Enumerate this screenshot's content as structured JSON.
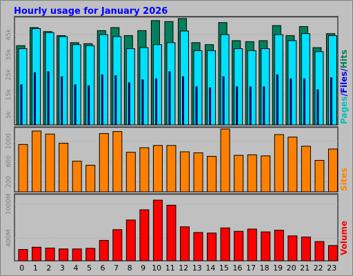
{
  "title": "Hourly usage for January 2026",
  "colors": {
    "hits": "#00805c",
    "files": "#00e0ff",
    "pages": "#00ffff",
    "pages_inner": "#0000ff",
    "sites": "#ff8000",
    "volume": "#ff0000",
    "title": "#0000ff",
    "label_hits": "#00805c",
    "label_files": "#0000ff",
    "label_pages": "#00c0c0",
    "label_sites": "#ff8000",
    "label_volume": "#ff0000"
  },
  "chart_data": [
    {
      "type": "bar",
      "name": "hits-files-pages",
      "categories": [
        "0",
        "1",
        "2",
        "3",
        "4",
        "5",
        "6",
        "7",
        "8",
        "9",
        "10",
        "11",
        "12",
        "13",
        "14",
        "15",
        "16",
        "17",
        "18",
        "19",
        "20",
        "21",
        "22",
        "23"
      ],
      "series": [
        {
          "name": "Hits",
          "values": [
            39500,
            48500,
            46500,
            44500,
            41000,
            40500,
            47000,
            48500,
            44500,
            47000,
            52000,
            51500,
            53000,
            41000,
            40000,
            51000,
            42000,
            41500,
            42000,
            49500,
            44500,
            49000,
            38500,
            45500
          ]
        },
        {
          "name": "Files",
          "values": [
            38000,
            48000,
            46000,
            44000,
            40000,
            39500,
            45000,
            44000,
            38000,
            38500,
            40000,
            41000,
            46800,
            37000,
            37000,
            45000,
            38000,
            37000,
            38000,
            45000,
            42000,
            45500,
            36500,
            44500
          ]
        },
        {
          "name": "Pages",
          "values": [
            20000,
            26000,
            26500,
            24000,
            20000,
            19500,
            25000,
            24500,
            21000,
            22500,
            23000,
            26500,
            24000,
            19000,
            18500,
            24000,
            19000,
            19000,
            19000,
            25000,
            23000,
            23000,
            17500,
            23500
          ]
        }
      ],
      "axis_label": {
        "pages": "Pages",
        "sep1": "/",
        "files": "Files",
        "sep2": "/",
        "hits": "Hits"
      },
      "ticks": [
        "5k",
        "15k",
        "25k",
        "35k",
        "45k"
      ],
      "tick_values": [
        5000,
        15000,
        25000,
        35000,
        45000
      ],
      "ylim": [
        0,
        54000
      ]
    },
    {
      "type": "bar",
      "name": "sites",
      "categories": [
        "0",
        "1",
        "2",
        "3",
        "4",
        "5",
        "6",
        "7",
        "8",
        "9",
        "10",
        "11",
        "12",
        "13",
        "14",
        "15",
        "16",
        "17",
        "18",
        "19",
        "20",
        "21",
        "22",
        "23"
      ],
      "series": [
        {
          "name": "Sites",
          "values": [
            935,
            1200,
            1140,
            960,
            605,
            525,
            1150,
            1190,
            780,
            870,
            915,
            915,
            790,
            770,
            700,
            1240,
            720,
            730,
            710,
            1130,
            1080,
            900,
            620,
            845
          ]
        }
      ],
      "axis_label": "Sites",
      "ticks": [
        "200",
        "600",
        "1000"
      ],
      "tick_values": [
        200,
        600,
        1000
      ],
      "ylim": [
        0,
        1280
      ]
    },
    {
      "type": "bar",
      "name": "volume",
      "categories": [
        "0",
        "1",
        "2",
        "3",
        "4",
        "5",
        "6",
        "7",
        "8",
        "9",
        "10",
        "11",
        "12",
        "13",
        "14",
        "15",
        "16",
        "17",
        "18",
        "19",
        "20",
        "21",
        "22",
        "23"
      ],
      "series": [
        {
          "name": "Volume",
          "values": [
            200,
            240,
            225,
            210,
            210,
            220,
            360,
            550,
            720,
            900,
            1070,
            980,
            600,
            500,
            490,
            580,
            520,
            560,
            510,
            540,
            440,
            420,
            340,
            270
          ]
        }
      ],
      "axis_label": "Volume",
      "ticks": [
        "400M",
        "1000M"
      ],
      "tick_values": [
        400,
        1000
      ],
      "ylim": [
        0,
        1180
      ]
    }
  ]
}
